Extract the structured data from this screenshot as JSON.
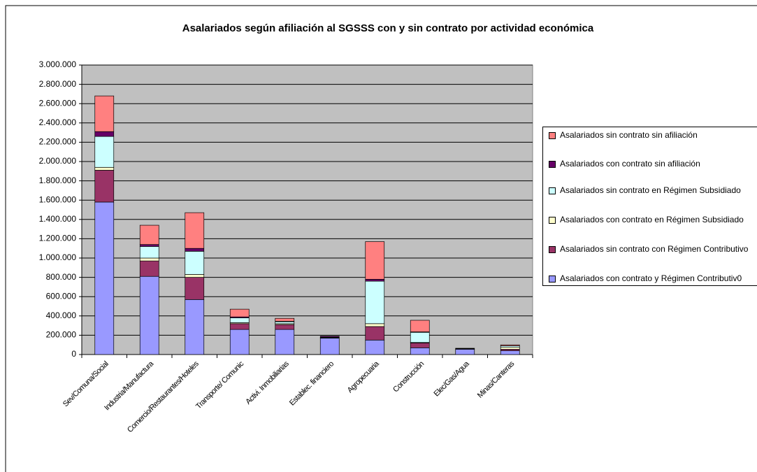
{
  "chart_data": {
    "type": "stacked_bar",
    "title": "Asalariados según afiliación al SGSSS con y sin contrato por actividad económica",
    "categories": [
      "Sev/Comuna/Social",
      "Industria/Manufactura",
      "Comercio/Restaurantes/Hoteles",
      "Transporte/ Comunic",
      "Activi. Inmobiliarias",
      "Establec. financiero",
      "Agropecuaria",
      "Construcción",
      "Elec/Gas/Agua",
      "Minas/Canteras"
    ],
    "series": [
      {
        "name": "Asalariados con contrato y Régimen Contributiv0",
        "color": "#9999ff",
        "values": [
          1580000,
          810000,
          570000,
          260000,
          260000,
          170000,
          150000,
          70000,
          55000,
          40000
        ]
      },
      {
        "name": "Asalariados sin contrato con Régimen Contributivo",
        "color": "#993366",
        "values": [
          330000,
          160000,
          230000,
          60000,
          50000,
          5000,
          140000,
          50000,
          5000,
          15000
        ]
      },
      {
        "name": "Asalariados con contrato en Régimen Subsidiado",
        "color": "#ffffcc",
        "values": [
          30000,
          30000,
          30000,
          10000,
          10000,
          0,
          30000,
          5000,
          0,
          20000
        ]
      },
      {
        "name": "Asalariados sin contrato en Régimen Subsidiado",
        "color": "#ccffff",
        "values": [
          320000,
          120000,
          240000,
          50000,
          20000,
          5000,
          440000,
          105000,
          5000,
          15000
        ]
      },
      {
        "name": "Asalariados con contrato sin afiliación",
        "color": "#660066",
        "values": [
          50000,
          20000,
          30000,
          10000,
          5000,
          10000,
          20000,
          5000,
          0,
          0
        ]
      },
      {
        "name": "Asalariados sin contrato sin afiliación",
        "color": "#ff8080",
        "values": [
          370000,
          200000,
          370000,
          80000,
          30000,
          0,
          390000,
          120000,
          0,
          10000
        ]
      }
    ],
    "ylim": [
      0,
      3000000
    ],
    "yticks": [
      0,
      {
        "value": 200000,
        "label": "200.000"
      },
      {
        "value": 400000,
        "label": "400.000"
      },
      {
        "value": 600000,
        "label": "600.000"
      },
      {
        "value": 800000,
        "label": "800.000"
      },
      {
        "value": 1000000,
        "label": "1.000.000"
      },
      {
        "value": 1200000,
        "label": "1.200.000"
      },
      {
        "value": 1400000,
        "label": "1.400.000"
      },
      {
        "value": 1600000,
        "label": "1.600.000"
      },
      {
        "value": 1800000,
        "label": "1.800.000"
      },
      {
        "value": 2000000,
        "label": "2.000.000"
      },
      {
        "value": 2200000,
        "label": "2.200.000"
      },
      {
        "value": 2400000,
        "label": "2.400.000"
      },
      {
        "value": 2600000,
        "label": "2.600.000"
      },
      {
        "value": 2800000,
        "label": "2.800.000"
      },
      {
        "value": 3000000,
        "label": "3.000.000"
      }
    ],
    "grid": true,
    "legend": "right"
  }
}
